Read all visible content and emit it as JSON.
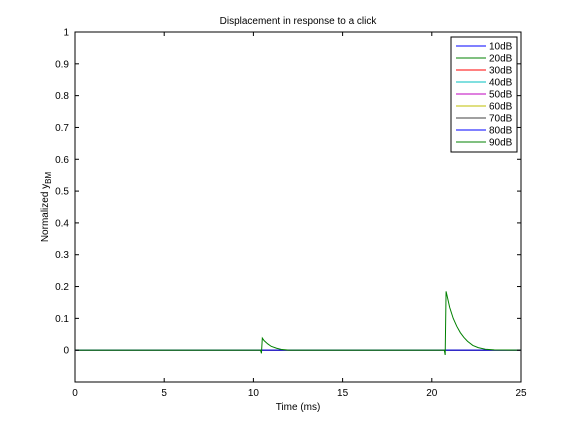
{
  "chart_data": {
    "type": "line",
    "title": "Displacement in response to a click",
    "xlabel": "Time (ms)",
    "ylabel_main": "Normalized y",
    "ylabel_sub": "BM",
    "xlim": [
      0,
      25
    ],
    "ylim": [
      -0.1,
      1
    ],
    "xticks": [
      0,
      5,
      10,
      15,
      20,
      25
    ],
    "yticks": [
      0,
      0.1,
      0.2,
      0.3,
      0.4,
      0.5,
      0.6,
      0.7,
      0.8,
      0.9,
      1
    ],
    "xtick_labels": [
      "0",
      "5",
      "10",
      "15",
      "20",
      "25"
    ],
    "ytick_labels": [
      "0",
      "0.1",
      "0.2",
      "0.3",
      "0.4",
      "0.5",
      "0.6",
      "0.7",
      "0.8",
      "0.9",
      "1"
    ],
    "grid": false,
    "legend_position": "top-right",
    "series": [
      {
        "name": "10dB",
        "color": "#0000ff",
        "x": [
          0,
          25
        ],
        "y": [
          0,
          0
        ]
      },
      {
        "name": "20dB",
        "color": "#008000",
        "x": [
          0,
          25
        ],
        "y": [
          0,
          0
        ]
      },
      {
        "name": "30dB",
        "color": "#ff0000",
        "x": [
          0,
          25
        ],
        "y": [
          0,
          0
        ]
      },
      {
        "name": "40dB",
        "color": "#00bfbf",
        "x": [
          0,
          25
        ],
        "y": [
          0,
          0
        ]
      },
      {
        "name": "50dB",
        "color": "#bf00bf",
        "x": [
          0,
          25
        ],
        "y": [
          0,
          0
        ]
      },
      {
        "name": "60dB",
        "color": "#bfbf00",
        "x": [
          0,
          25
        ],
        "y": [
          0,
          0
        ]
      },
      {
        "name": "70dB",
        "color": "#404040",
        "x": [
          0,
          25
        ],
        "y": [
          0,
          0
        ]
      },
      {
        "name": "80dB",
        "color": "#0000ff",
        "x": [
          0,
          25
        ],
        "y": [
          0,
          0
        ]
      },
      {
        "name": "90dB",
        "color": "#008000",
        "x": [
          0,
          10.4,
          10.45,
          10.5,
          10.6,
          10.8,
          11.0,
          11.3,
          11.6,
          12.0,
          20.7,
          20.75,
          20.8,
          20.9,
          21.0,
          21.2,
          21.4,
          21.6,
          21.8,
          22.0,
          22.3,
          22.6,
          23.0,
          23.5,
          25
        ],
        "y": [
          0,
          0,
          -0.01,
          0.038,
          0.03,
          0.02,
          0.012,
          0.006,
          0.002,
          0,
          0,
          -0.015,
          0.185,
          0.16,
          0.135,
          0.1,
          0.075,
          0.055,
          0.04,
          0.028,
          0.015,
          0.008,
          0.003,
          0.001,
          0
        ]
      }
    ]
  }
}
